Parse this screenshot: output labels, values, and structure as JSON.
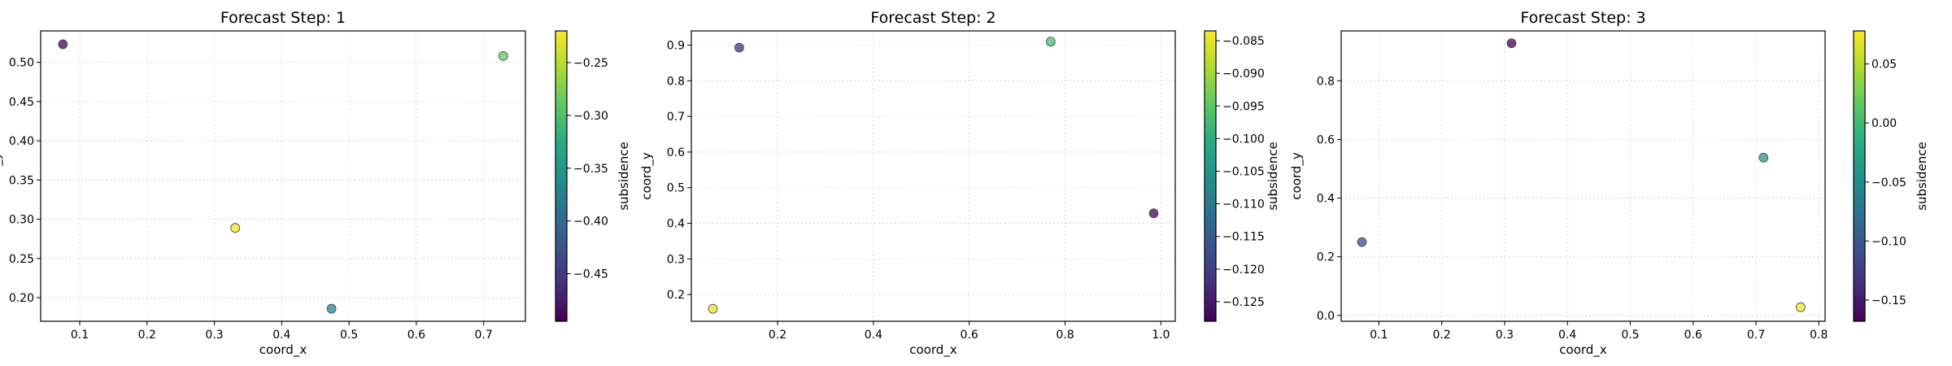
{
  "chart_data": [
    {
      "type": "scatter",
      "title": "Forecast Step: 1",
      "xlabel": "coord_x",
      "ylabel": "coord_y",
      "colorbar_label": "subsidence",
      "xlim": [
        0.042,
        0.762
      ],
      "ylim": [
        0.17,
        0.54
      ],
      "xticks": [
        0.1,
        0.2,
        0.3,
        0.4,
        0.5,
        0.6,
        0.7
      ],
      "xtick_labels": [
        "0.1",
        "0.2",
        "0.3",
        "0.4",
        "0.5",
        "0.6",
        "0.7"
      ],
      "yticks": [
        0.2,
        0.25,
        0.3,
        0.35,
        0.4,
        0.45,
        0.5
      ],
      "ytick_labels": [
        "0.20",
        "0.25",
        "0.30",
        "0.35",
        "0.40",
        "0.45",
        "0.50"
      ],
      "clim": [
        -0.495,
        -0.22
      ],
      "cticks": [
        -0.45,
        -0.4,
        -0.35,
        -0.3,
        -0.25
      ],
      "ctick_labels": [
        "−0.45",
        "−0.40",
        "−0.35",
        "−0.30",
        "−0.25"
      ],
      "grid": true,
      "colormap": "viridis",
      "points": [
        {
          "x": 0.075,
          "y": 0.523,
          "c": -0.495
        },
        {
          "x": 0.729,
          "y": 0.508,
          "c": -0.29
        },
        {
          "x": 0.331,
          "y": 0.289,
          "c": -0.225
        },
        {
          "x": 0.474,
          "y": 0.186,
          "c": -0.365
        }
      ]
    },
    {
      "type": "scatter",
      "title": "Forecast Step: 2",
      "xlabel": "coord_x",
      "ylabel": "coord_y",
      "colorbar_label": "subsidence",
      "xlim": [
        0.02,
        1.03
      ],
      "ylim": [
        0.125,
        0.94
      ],
      "xticks": [
        0.2,
        0.4,
        0.6,
        0.8,
        1.0
      ],
      "xtick_labels": [
        "0.2",
        "0.4",
        "0.6",
        "0.8",
        "1.0"
      ],
      "yticks": [
        0.2,
        0.3,
        0.4,
        0.5,
        0.6,
        0.7,
        0.8,
        0.9
      ],
      "ytick_labels": [
        "0.2",
        "0.3",
        "0.4",
        "0.5",
        "0.6",
        "0.7",
        "0.8",
        "0.9"
      ],
      "clim": [
        -0.128,
        -0.0835
      ],
      "cticks": [
        -0.125,
        -0.12,
        -0.115,
        -0.11,
        -0.105,
        -0.1,
        -0.095,
        -0.09,
        -0.085
      ],
      "ctick_labels": [
        "−0.125",
        "−0.120",
        "−0.115",
        "−0.110",
        "−0.105",
        "−0.100",
        "−0.095",
        "−0.090",
        "−0.085"
      ],
      "grid": true,
      "colormap": "viridis",
      "points": [
        {
          "x": 0.12,
          "y": 0.893,
          "c": -0.122
        },
        {
          "x": 0.77,
          "y": 0.91,
          "c": -0.097
        },
        {
          "x": 0.985,
          "y": 0.428,
          "c": -0.128
        },
        {
          "x": 0.065,
          "y": 0.16,
          "c": -0.085
        }
      ]
    },
    {
      "type": "scatter",
      "title": "Forecast Step: 3",
      "xlabel": "coord_x",
      "ylabel": "coord_y",
      "colorbar_label": "subsidence",
      "xlim": [
        0.04,
        0.81
      ],
      "ylim": [
        -0.02,
        0.97
      ],
      "xticks": [
        0.1,
        0.2,
        0.3,
        0.4,
        0.5,
        0.6,
        0.7,
        0.8
      ],
      "xtick_labels": [
        "0.1",
        "0.2",
        "0.3",
        "0.4",
        "0.5",
        "0.6",
        "0.7",
        "0.8"
      ],
      "yticks": [
        0.0,
        0.2,
        0.4,
        0.6,
        0.8
      ],
      "ytick_labels": [
        "0.0",
        "0.2",
        "0.4",
        "0.6",
        "0.8"
      ],
      "clim": [
        -0.168,
        0.078
      ],
      "cticks": [
        -0.15,
        -0.1,
        -0.05,
        0.0,
        0.05
      ],
      "ctick_labels": [
        "−0.15",
        "−0.10",
        "−0.05",
        "0.00",
        "0.05"
      ],
      "grid": true,
      "colormap": "viridis",
      "points": [
        {
          "x": 0.311,
          "y": 0.928,
          "c": -0.168
        },
        {
          "x": 0.712,
          "y": 0.538,
          "c": -0.04
        },
        {
          "x": 0.073,
          "y": 0.25,
          "c": -0.115
        },
        {
          "x": 0.771,
          "y": 0.028,
          "c": 0.075
        }
      ]
    }
  ]
}
